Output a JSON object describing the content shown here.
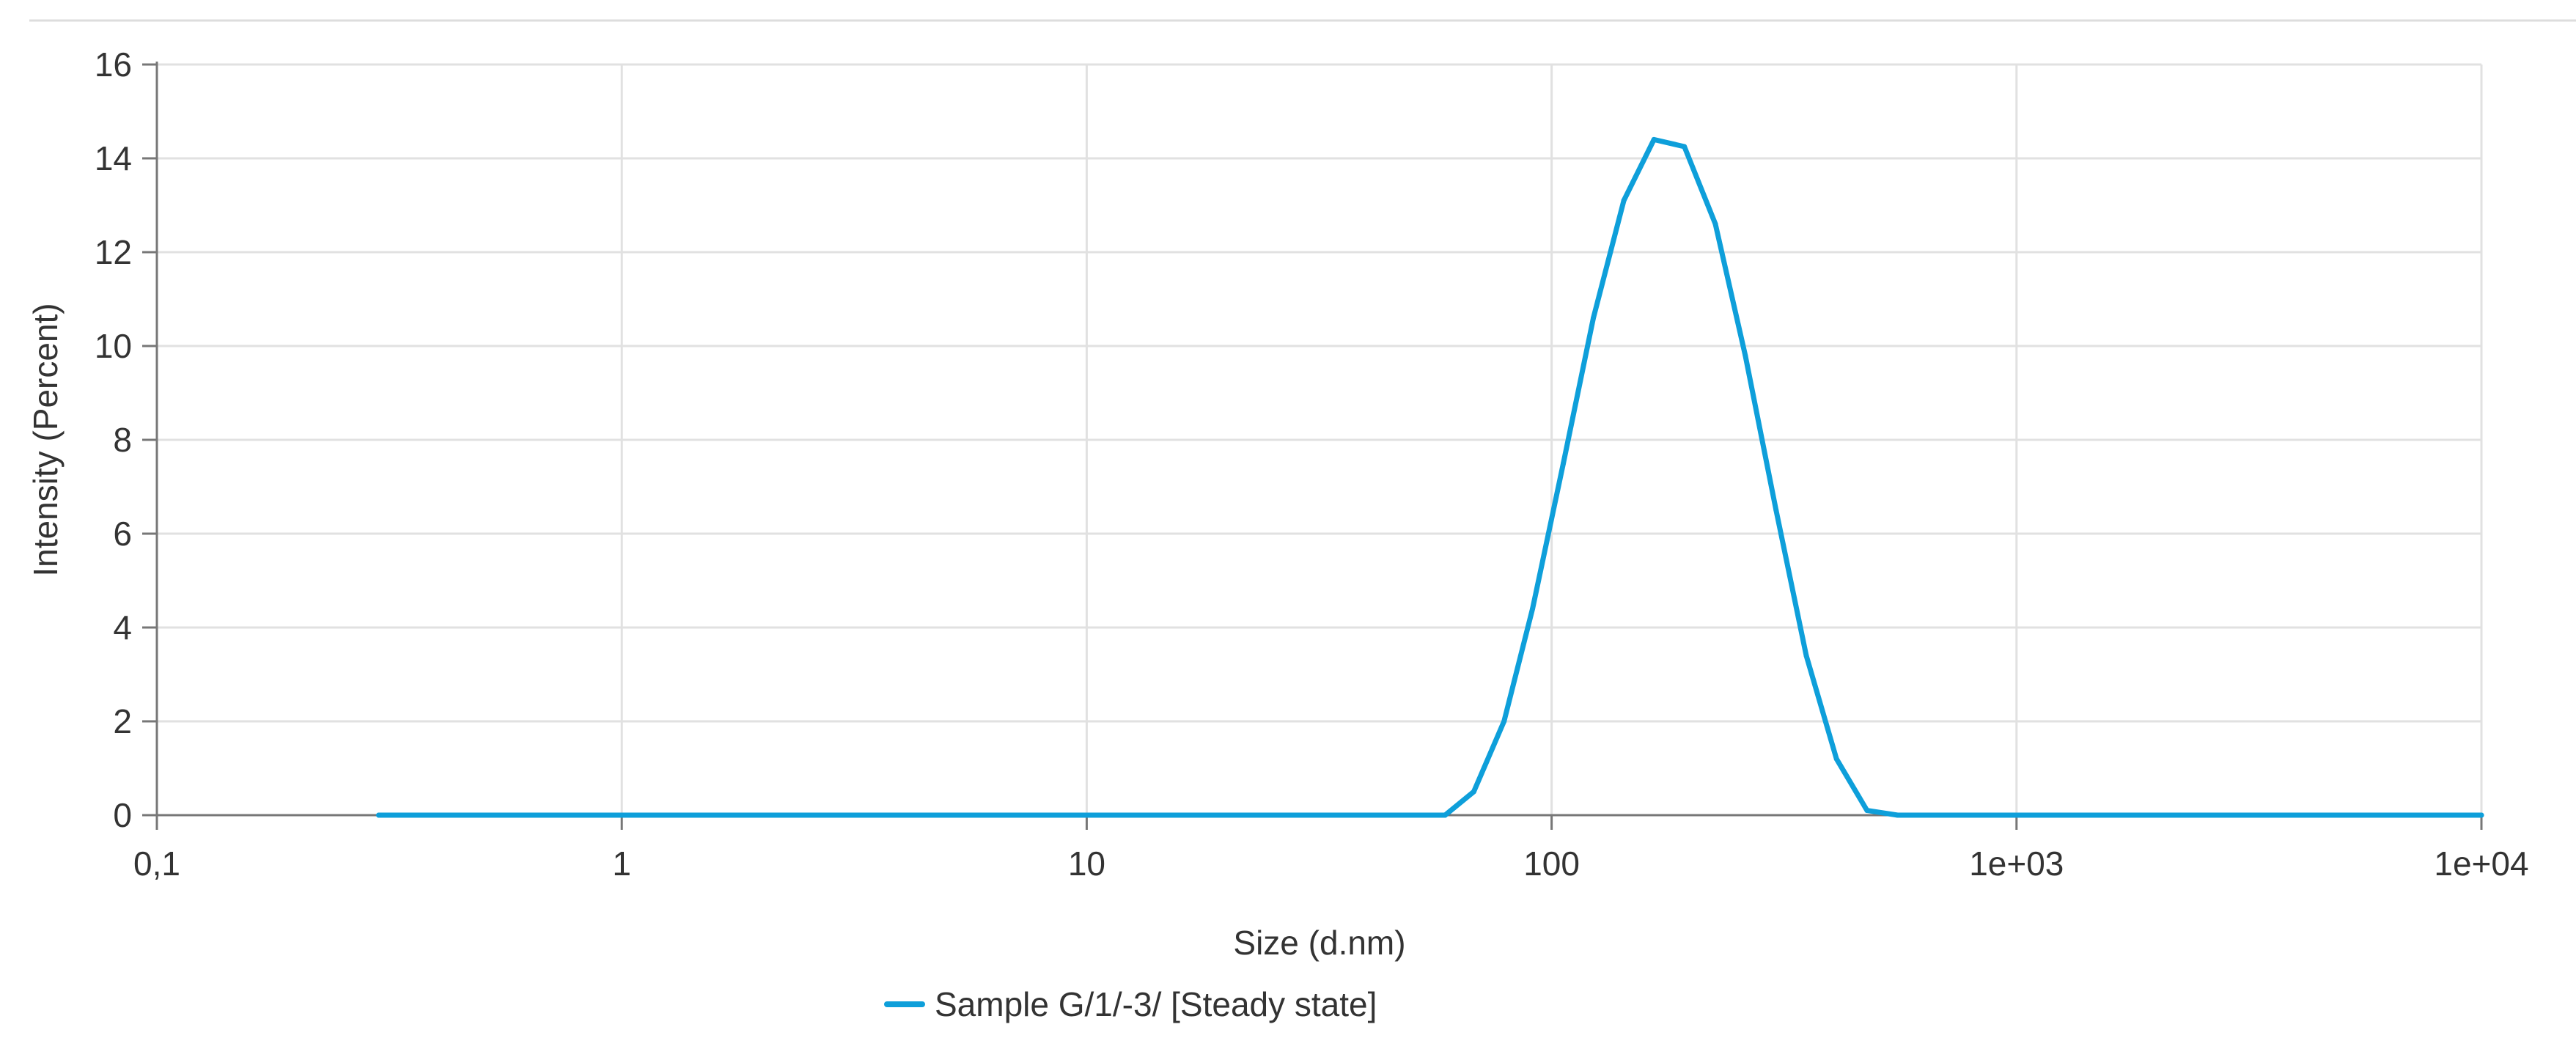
{
  "chart_data": {
    "type": "line",
    "title": "",
    "xlabel": "Size (d.nm)",
    "ylabel": "Intensity (Percent)",
    "xscale": "log",
    "xlim": [
      0.1,
      10000
    ],
    "ylim": [
      0,
      16
    ],
    "x_ticks": [
      {
        "value": 0.1,
        "label": "0,1"
      },
      {
        "value": 1,
        "label": "1"
      },
      {
        "value": 10,
        "label": "10"
      },
      {
        "value": 100,
        "label": "100"
      },
      {
        "value": 1000,
        "label": "1e+03"
      },
      {
        "value": 10000,
        "label": "1e+04"
      }
    ],
    "y_ticks": [
      {
        "value": 0,
        "label": "0"
      },
      {
        "value": 2,
        "label": "2"
      },
      {
        "value": 4,
        "label": "4"
      },
      {
        "value": 6,
        "label": "6"
      },
      {
        "value": 8,
        "label": "8"
      },
      {
        "value": 10,
        "label": "10"
      },
      {
        "value": 12,
        "label": "12"
      },
      {
        "value": 14,
        "label": "14"
      },
      {
        "value": 16,
        "label": "16"
      }
    ],
    "grid": true,
    "legend_position": "bottom-center",
    "series": [
      {
        "name": "Sample G/1/-3/ [Steady state]",
        "color": "#0E9FDA",
        "points": [
          {
            "x": 0.3,
            "y": 0
          },
          {
            "x": 1,
            "y": 0
          },
          {
            "x": 10,
            "y": 0
          },
          {
            "x": 30,
            "y": 0
          },
          {
            "x": 59,
            "y": 0
          },
          {
            "x": 68,
            "y": 0.5
          },
          {
            "x": 79,
            "y": 2.0
          },
          {
            "x": 91,
            "y": 4.4
          },
          {
            "x": 106,
            "y": 7.5
          },
          {
            "x": 123,
            "y": 10.6
          },
          {
            "x": 143,
            "y": 13.1
          },
          {
            "x": 166,
            "y": 14.4
          },
          {
            "x": 193,
            "y": 14.25
          },
          {
            "x": 225,
            "y": 12.6
          },
          {
            "x": 261,
            "y": 9.8
          },
          {
            "x": 304,
            "y": 6.5
          },
          {
            "x": 353,
            "y": 3.4
          },
          {
            "x": 410,
            "y": 1.2
          },
          {
            "x": 477,
            "y": 0.1
          },
          {
            "x": 555,
            "y": 0
          },
          {
            "x": 1000,
            "y": 0
          },
          {
            "x": 10000,
            "y": 0
          }
        ]
      }
    ]
  }
}
